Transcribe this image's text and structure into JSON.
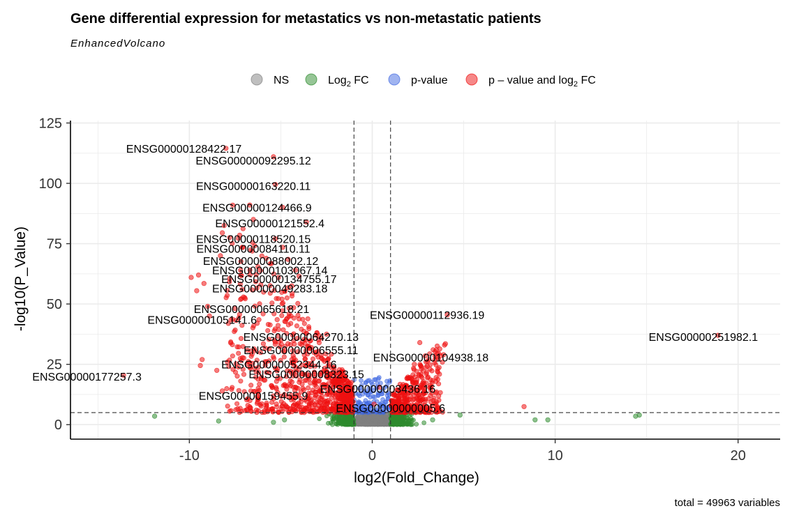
{
  "chart_data": {
    "type": "scatter",
    "title": "Gene differential expression for metastatics vs non-metastatic patients",
    "subtitle": "EnhancedVolcano",
    "xlabel": "log2(Fold_Change)",
    "ylabel": "-log10(P_Value)",
    "xlim": [
      -16.5,
      22.3
    ],
    "ylim": [
      -6,
      126
    ],
    "x_ticks": [
      -10,
      0,
      10,
      20
    ],
    "y_ticks": [
      0,
      25,
      50,
      75,
      100,
      125
    ],
    "grid": true,
    "legend_position": "top",
    "thresholds": {
      "fc_cutoff": [
        -1,
        1
      ],
      "p_cutoff": 5
    },
    "caption": "total = 49963 variables",
    "legend": [
      {
        "key": "ns",
        "label": "NS",
        "color": "#808080"
      },
      {
        "key": "fc",
        "label": "Log",
        "sub": "2",
        "suffix": " FC",
        "color": "#2e8b2e"
      },
      {
        "key": "p",
        "label": "p-value",
        "color": "#4169e1"
      },
      {
        "key": "pfc",
        "label": "p – value and log",
        "sub": "2",
        "suffix": " FC",
        "color": "#ee1111"
      }
    ],
    "labeled_points": [
      {
        "label": "ENSG00000128422.17",
        "x": -8.0,
        "y": 114.5,
        "lx": -10.3,
        "ly": 114.5
      },
      {
        "label": "ENSG00000092295.12",
        "x": -5.4,
        "y": 111.0,
        "lx": -6.5,
        "ly": 109.5
      },
      {
        "label": "ENSG00000163220.11",
        "x": -5.3,
        "y": 99.5,
        "lx": -6.5,
        "ly": 99.0
      },
      {
        "label": "ENSG00000124466.9",
        "x": -4.9,
        "y": 90.0,
        "lx": -6.3,
        "ly": 90.0
      },
      {
        "label": "ENSG00000121552.4",
        "x": -3.6,
        "y": 84.0,
        "lx": -5.6,
        "ly": 83.5
      },
      {
        "label": "ENSG00000118520.15",
        "x": -5.3,
        "y": 77.0,
        "lx": -6.5,
        "ly": 77.0
      },
      {
        "label": "ENSG00000084110.11",
        "x": -4.9,
        "y": 73.5,
        "lx": -6.5,
        "ly": 73.0
      },
      {
        "label": "ENSG00000088002.12",
        "x": -4.6,
        "y": 68.5,
        "lx": -6.1,
        "ly": 68.0
      },
      {
        "label": "ENSG00000103067.14",
        "x": -4.2,
        "y": 64.0,
        "lx": -5.6,
        "ly": 64.0
      },
      {
        "label": "ENSG00000134755.17",
        "x": -4.0,
        "y": 61.5,
        "lx": -5.1,
        "ly": 60.5
      },
      {
        "label": "ENSG00000049283.18",
        "x": -4.4,
        "y": 57.5,
        "lx": -5.6,
        "ly": 56.5
      },
      {
        "label": "ENSG00000065618.21",
        "x": -4.3,
        "y": 48.5,
        "lx": -6.6,
        "ly": 48.0
      },
      {
        "label": "ENSG00000105141.6",
        "x": -5.2,
        "y": 43.5,
        "lx": -9.3,
        "ly": 43.5
      },
      {
        "label": "ENSG00000112936.19",
        "x": 4.1,
        "y": 45.5,
        "lx": 3.0,
        "ly": 45.5
      },
      {
        "label": "ENSG00000251982.1",
        "x": 18.9,
        "y": 37.0,
        "lx": 18.1,
        "ly": 36.5
      },
      {
        "label": "ENSG00000064270.13",
        "x": -2.5,
        "y": 37.5,
        "lx": -3.9,
        "ly": 36.5
      },
      {
        "label": "ENSG00000006555.11",
        "x": -3.4,
        "y": 31.5,
        "lx": -3.9,
        "ly": 31.0
      },
      {
        "label": "ENSG00000104938.18",
        "x": 2.9,
        "y": 28.5,
        "lx": 3.2,
        "ly": 28.0
      },
      {
        "label": "ENSG00000052344.16",
        "x": -4.4,
        "y": 25.5,
        "lx": -5.1,
        "ly": 25.0
      },
      {
        "label": "ENSG00000177257.3",
        "x": -13.6,
        "y": 20.5,
        "lx": -15.6,
        "ly": 20.0
      },
      {
        "label": "ENSG00000008323.15",
        "x": -2.1,
        "y": 21.5,
        "lx": -3.6,
        "ly": 21.0
      },
      {
        "label": "ENSG00000003436.16",
        "x": 0.4,
        "y": 15.5,
        "lx": 0.3,
        "ly": 15.0
      },
      {
        "label": "ENSG00000159455.9",
        "x": -4.8,
        "y": 12.5,
        "lx": -6.5,
        "ly": 12.0
      },
      {
        "label": "ENSG00000000005.6",
        "x": 0.1,
        "y": 8.5,
        "lx": 1.0,
        "ly": 7.0
      }
    ],
    "other_points": [
      {
        "x": -11.9,
        "y": 3.5,
        "g": "fc"
      },
      {
        "x": -8.4,
        "y": 1.5,
        "g": "fc"
      },
      {
        "x": -5.4,
        "y": 1.0,
        "g": "fc"
      },
      {
        "x": -4.8,
        "y": 2.0,
        "g": "fc"
      },
      {
        "x": 8.9,
        "y": 2.0,
        "g": "fc"
      },
      {
        "x": 9.6,
        "y": 2.0,
        "g": "fc"
      },
      {
        "x": 14.4,
        "y": 3.5,
        "g": "fc"
      },
      {
        "x": 14.6,
        "y": 4.0,
        "g": "fc"
      },
      {
        "x": 4.8,
        "y": 4.0,
        "g": "fc"
      },
      {
        "x": 3.3,
        "y": 2.0,
        "g": "fc"
      },
      {
        "x": 8.3,
        "y": 7.5,
        "g": "pfc"
      },
      {
        "x": -9.5,
        "y": 62.0,
        "g": "pfc"
      },
      {
        "x": -9.9,
        "y": 61.0,
        "g": "pfc"
      },
      {
        "x": -9.6,
        "y": 55.5,
        "g": "pfc"
      },
      {
        "x": -9.2,
        "y": 58.5,
        "g": "pfc"
      },
      {
        "x": -8.9,
        "y": 45.0,
        "g": "pfc"
      },
      {
        "x": -9.0,
        "y": 49.0,
        "g": "pfc"
      },
      {
        "x": -9.3,
        "y": 27.0,
        "g": "pfc"
      },
      {
        "x": -9.4,
        "y": 24.5,
        "g": "pfc"
      },
      {
        "x": -8.5,
        "y": 22.5,
        "g": "pfc"
      },
      {
        "x": -8.1,
        "y": 82.5,
        "g": "pfc"
      },
      {
        "x": -8.2,
        "y": 79.5,
        "g": "pfc"
      },
      {
        "x": -8.3,
        "y": 70.0,
        "g": "pfc"
      },
      {
        "x": -6.7,
        "y": 91.0,
        "g": "pfc"
      },
      {
        "x": -6.5,
        "y": 85.0,
        "g": "pfc"
      },
      {
        "x": -8.2,
        "y": 14.0,
        "g": "pfc"
      },
      {
        "x": 2.6,
        "y": 34.0,
        "g": "pfc"
      },
      {
        "x": 3.5,
        "y": 31.0,
        "g": "pfc"
      },
      {
        "x": 4.0,
        "y": 33.5,
        "g": "pfc"
      },
      {
        "x": 3.9,
        "y": 29.0,
        "g": "pfc"
      },
      {
        "x": 2.3,
        "y": 25.0,
        "g": "pfc"
      }
    ]
  }
}
